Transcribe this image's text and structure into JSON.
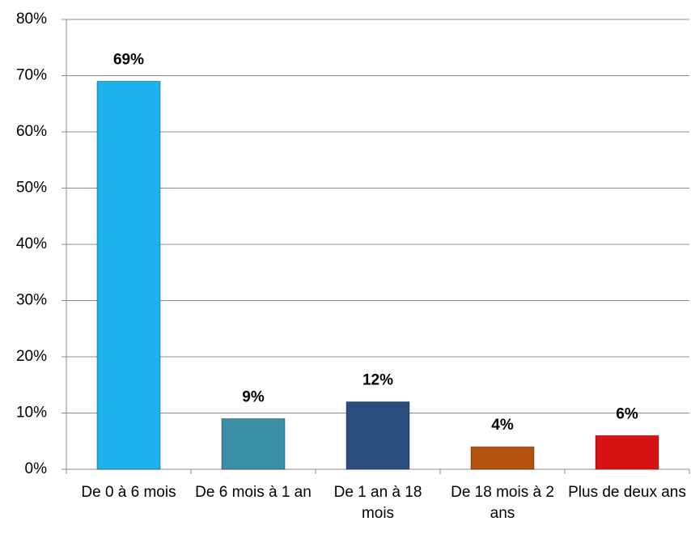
{
  "chart_data": {
    "type": "bar",
    "categories": [
      "De 0 à 6 mois",
      "De 6 mois à 1 an",
      "De 1 an à 18 mois",
      "De 18 mois à 2 ans",
      "Plus de deux ans"
    ],
    "values": [
      69,
      9,
      12,
      4,
      6
    ],
    "value_labels": [
      "69%",
      "9%",
      "12%",
      "4%",
      "6%"
    ],
    "colors": [
      "#1cb2ee",
      "#3a8ea6",
      "#2b4e7e",
      "#b4520f",
      "#d71212"
    ],
    "ylim": [
      0,
      80
    ],
    "yticks": [
      {
        "value": 0,
        "label": "0%"
      },
      {
        "value": 10,
        "label": "10%"
      },
      {
        "value": 20,
        "label": "20%"
      },
      {
        "value": 30,
        "label": "30%"
      },
      {
        "value": 40,
        "label": "40%"
      },
      {
        "value": 50,
        "label": "50%"
      },
      {
        "value": 60,
        "label": "60%"
      },
      {
        "value": 70,
        "label": "70%"
      },
      {
        "value": 80,
        "label": "80%"
      }
    ],
    "grid": true
  }
}
